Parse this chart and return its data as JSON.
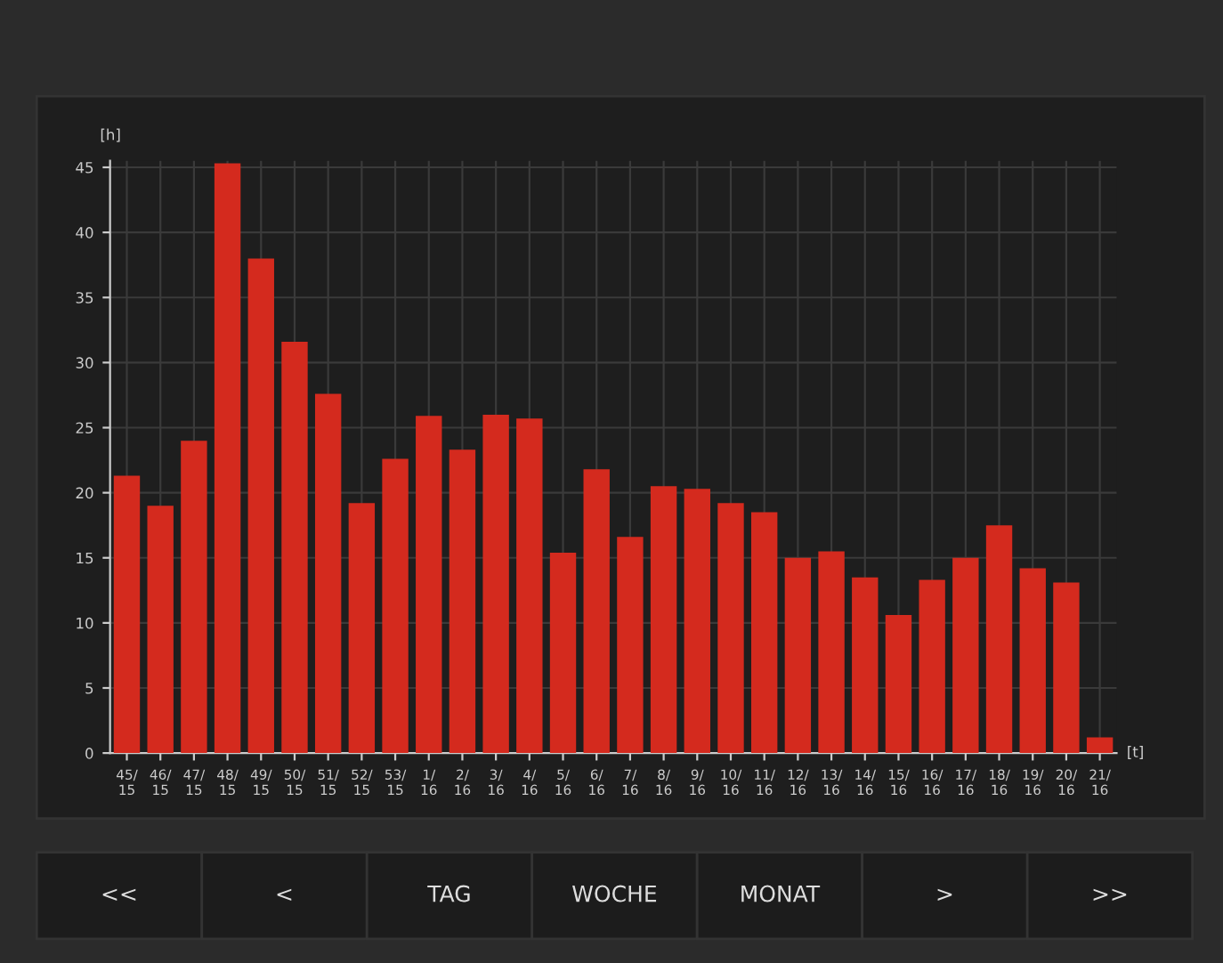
{
  "chart_data": {
    "type": "bar",
    "categories": [
      "45/\n15",
      "46/\n15",
      "47/\n15",
      "48/\n15",
      "49/\n15",
      "50/\n15",
      "51/\n15",
      "52/\n15",
      "53/\n15",
      "1/\n16",
      "2/\n16",
      "3/\n16",
      "4/\n16",
      "5/\n16",
      "6/\n16",
      "7/\n16",
      "8/\n16",
      "9/\n16",
      "10/\n16",
      "11/\n16",
      "12/\n16",
      "13/\n16",
      "14/\n16",
      "15/\n16",
      "16/\n16",
      "17/\n16",
      "18/\n16",
      "19/\n16",
      "20/\n16",
      "21/\n16"
    ],
    "values": [
      21.3,
      19,
      24,
      45.3,
      38,
      31.6,
      27.6,
      19.2,
      22.6,
      25.9,
      23.3,
      26,
      25.7,
      15.4,
      21.8,
      16.6,
      20.5,
      20.3,
      19.2,
      18.5,
      15,
      15.5,
      13.5,
      10.6,
      13.3,
      15,
      17.5,
      14.2,
      13.1,
      1.2
    ],
    "color": "#d42a1e",
    "ylim": [
      0,
      45.5
    ],
    "yticks": [
      0,
      5,
      10,
      15,
      20,
      25,
      30,
      35,
      40,
      45
    ],
    "ylabel": "[h]",
    "xlabel": "[t]",
    "grid": true,
    "annotations": [
      "<<",
      "<",
      "TAG",
      "WOCHE",
      "MONAT",
      ">",
      ">>"
    ]
  }
}
